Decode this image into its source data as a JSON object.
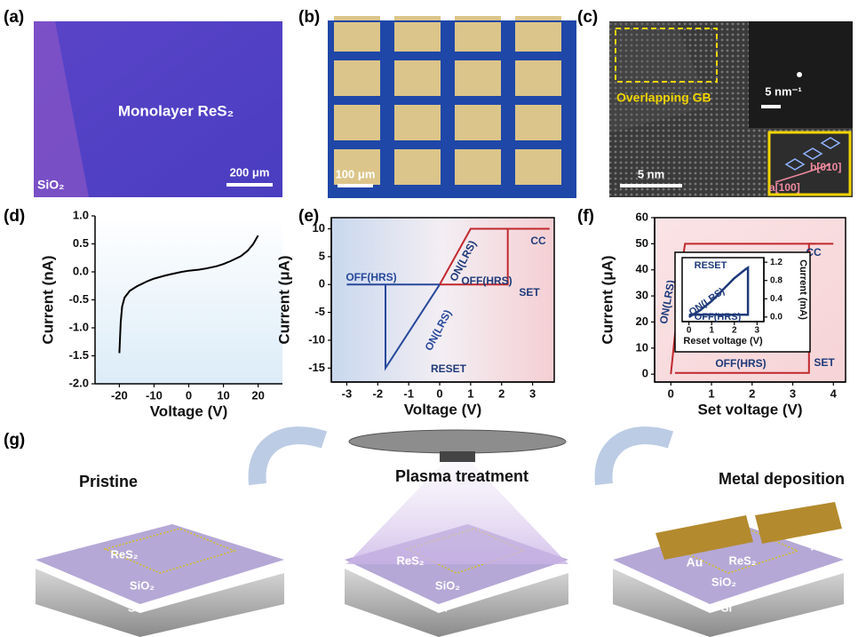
{
  "panel_labels": [
    "(a)",
    "(b)",
    "(c)",
    "(d)",
    "(e)",
    "(f)",
    "(g)"
  ],
  "image_a": {
    "title": "Monolayer ReS₂",
    "substrate": "SiO₂",
    "scale": "200 μm"
  },
  "image_b": {
    "scale": "100 μm"
  },
  "image_c": {
    "boundary": "Overlapping GB",
    "fft_scale": "5 nm⁻¹",
    "scale": "5 nm",
    "axis_a": "a[100]",
    "axis_b": "b[010]"
  },
  "schematic_g": {
    "steps": [
      "Pristine",
      "Plasma treatment",
      "Metal deposition"
    ],
    "layers": [
      "ReS₂",
      "SiO₂",
      "Si"
    ],
    "electrode": "Au"
  },
  "chart_data": [
    {
      "type": "line",
      "xlabel": "Voltage (V)",
      "ylabel": "Current (nA)",
      "xlim": [
        -27,
        27
      ],
      "ylim": [
        -2.0,
        1.0
      ],
      "xticks": [
        -20,
        -10,
        0,
        10,
        20
      ],
      "yticks": [
        {
          "value": -2.0,
          "label": "-2.0"
        },
        -1.5,
        {
          "value": -1.0,
          "label": "-1.0"
        },
        -0.5,
        {
          "value": 0,
          "label": "0.0"
        },
        0.5,
        {
          "value": 1.0,
          "label": "1.0"
        }
      ],
      "series": [
        {
          "color": "#000000",
          "x": [
            -20,
            -19.6,
            -19.2,
            -18.5,
            -17,
            -15,
            -12,
            -10,
            -7,
            -5,
            -2,
            0,
            3,
            5,
            8,
            10,
            12,
            15,
            17,
            18.5,
            20
          ],
          "values": [
            -1.45,
            -0.9,
            -0.62,
            -0.46,
            -0.34,
            -0.26,
            -0.17,
            -0.12,
            -0.07,
            -0.04,
            0.0,
            0.02,
            0.04,
            0.06,
            0.1,
            0.14,
            0.19,
            0.28,
            0.38,
            0.49,
            0.65
          ]
        }
      ],
      "annotations": []
    },
    {
      "type": "line",
      "xlabel": "Voltage (V)",
      "ylabel": "Current (μA)",
      "xlim": [
        -3.5,
        3.7
      ],
      "ylim": [
        -17.5,
        12
      ],
      "xticks": [
        -3,
        -2,
        -1,
        0,
        1,
        2,
        3
      ],
      "yticks": [
        -15,
        -10,
        -5,
        0,
        5,
        10
      ],
      "series": [
        {
          "color": "#c0282d",
          "x": [
            0,
            2.2,
            2.2,
            3.55,
            1.0,
            0
          ],
          "values": [
            0,
            0,
            10,
            10,
            10,
            0
          ]
        },
        {
          "color": "#27489a",
          "x": [
            0,
            -1.75,
            -1.75,
            -3,
            0
          ],
          "values": [
            0,
            -15,
            0,
            0,
            0
          ]
        }
      ],
      "annotations": [
        "CC",
        "OFF(HRS)",
        "ON(LRS)",
        "OFF(HRS)",
        "SET",
        "ON(LRS)",
        "RESET"
      ]
    },
    {
      "type": "line",
      "xlabel": "Set voltage (V)",
      "ylabel": "Current (μA)",
      "xlim": [
        -0.4,
        4.3
      ],
      "ylim": [
        -3,
        60
      ],
      "xticks": [
        0,
        1,
        2,
        3,
        4
      ],
      "yticks": [
        0,
        10,
        20,
        30,
        40,
        50,
        60
      ],
      "series": [
        {
          "color": "#c0282d",
          "x": [
            0,
            0.3,
            0.35,
            4.0
          ],
          "values": [
            0,
            45,
            50,
            50
          ]
        },
        {
          "color": "#c0282d",
          "x": [
            0.1,
            3.4,
            3.4,
            3.55
          ],
          "values": [
            0.5,
            0.5,
            50,
            50
          ]
        }
      ],
      "annotations": [
        "CC",
        "ON(LRS)",
        "OFF(HRS)",
        "SET"
      ]
    },
    {
      "type": "line",
      "xlabel": "Reset voltage (V)",
      "ylabel": "Current (mA)",
      "xlim": [
        -0.3,
        3.3
      ],
      "ylim": [
        -0.1,
        1.3
      ],
      "xticks": [
        0,
        1,
        2,
        3
      ],
      "yticks": [
        {
          "value": 0,
          "label": "0.0"
        },
        0.4,
        0.8,
        1.2
      ],
      "series": [
        {
          "color": "#1f3a7a",
          "x": [
            0,
            0.5,
            1.0,
            1.5,
            2.0,
            2.5,
            2.6,
            2.6,
            0
          ],
          "values": [
            0,
            0.15,
            0.35,
            0.6,
            0.85,
            1.05,
            1.08,
            0.05,
            0.05
          ]
        }
      ],
      "annotations": [
        "RESET",
        "ON(LRS)",
        "OFF(HRS)"
      ]
    }
  ]
}
